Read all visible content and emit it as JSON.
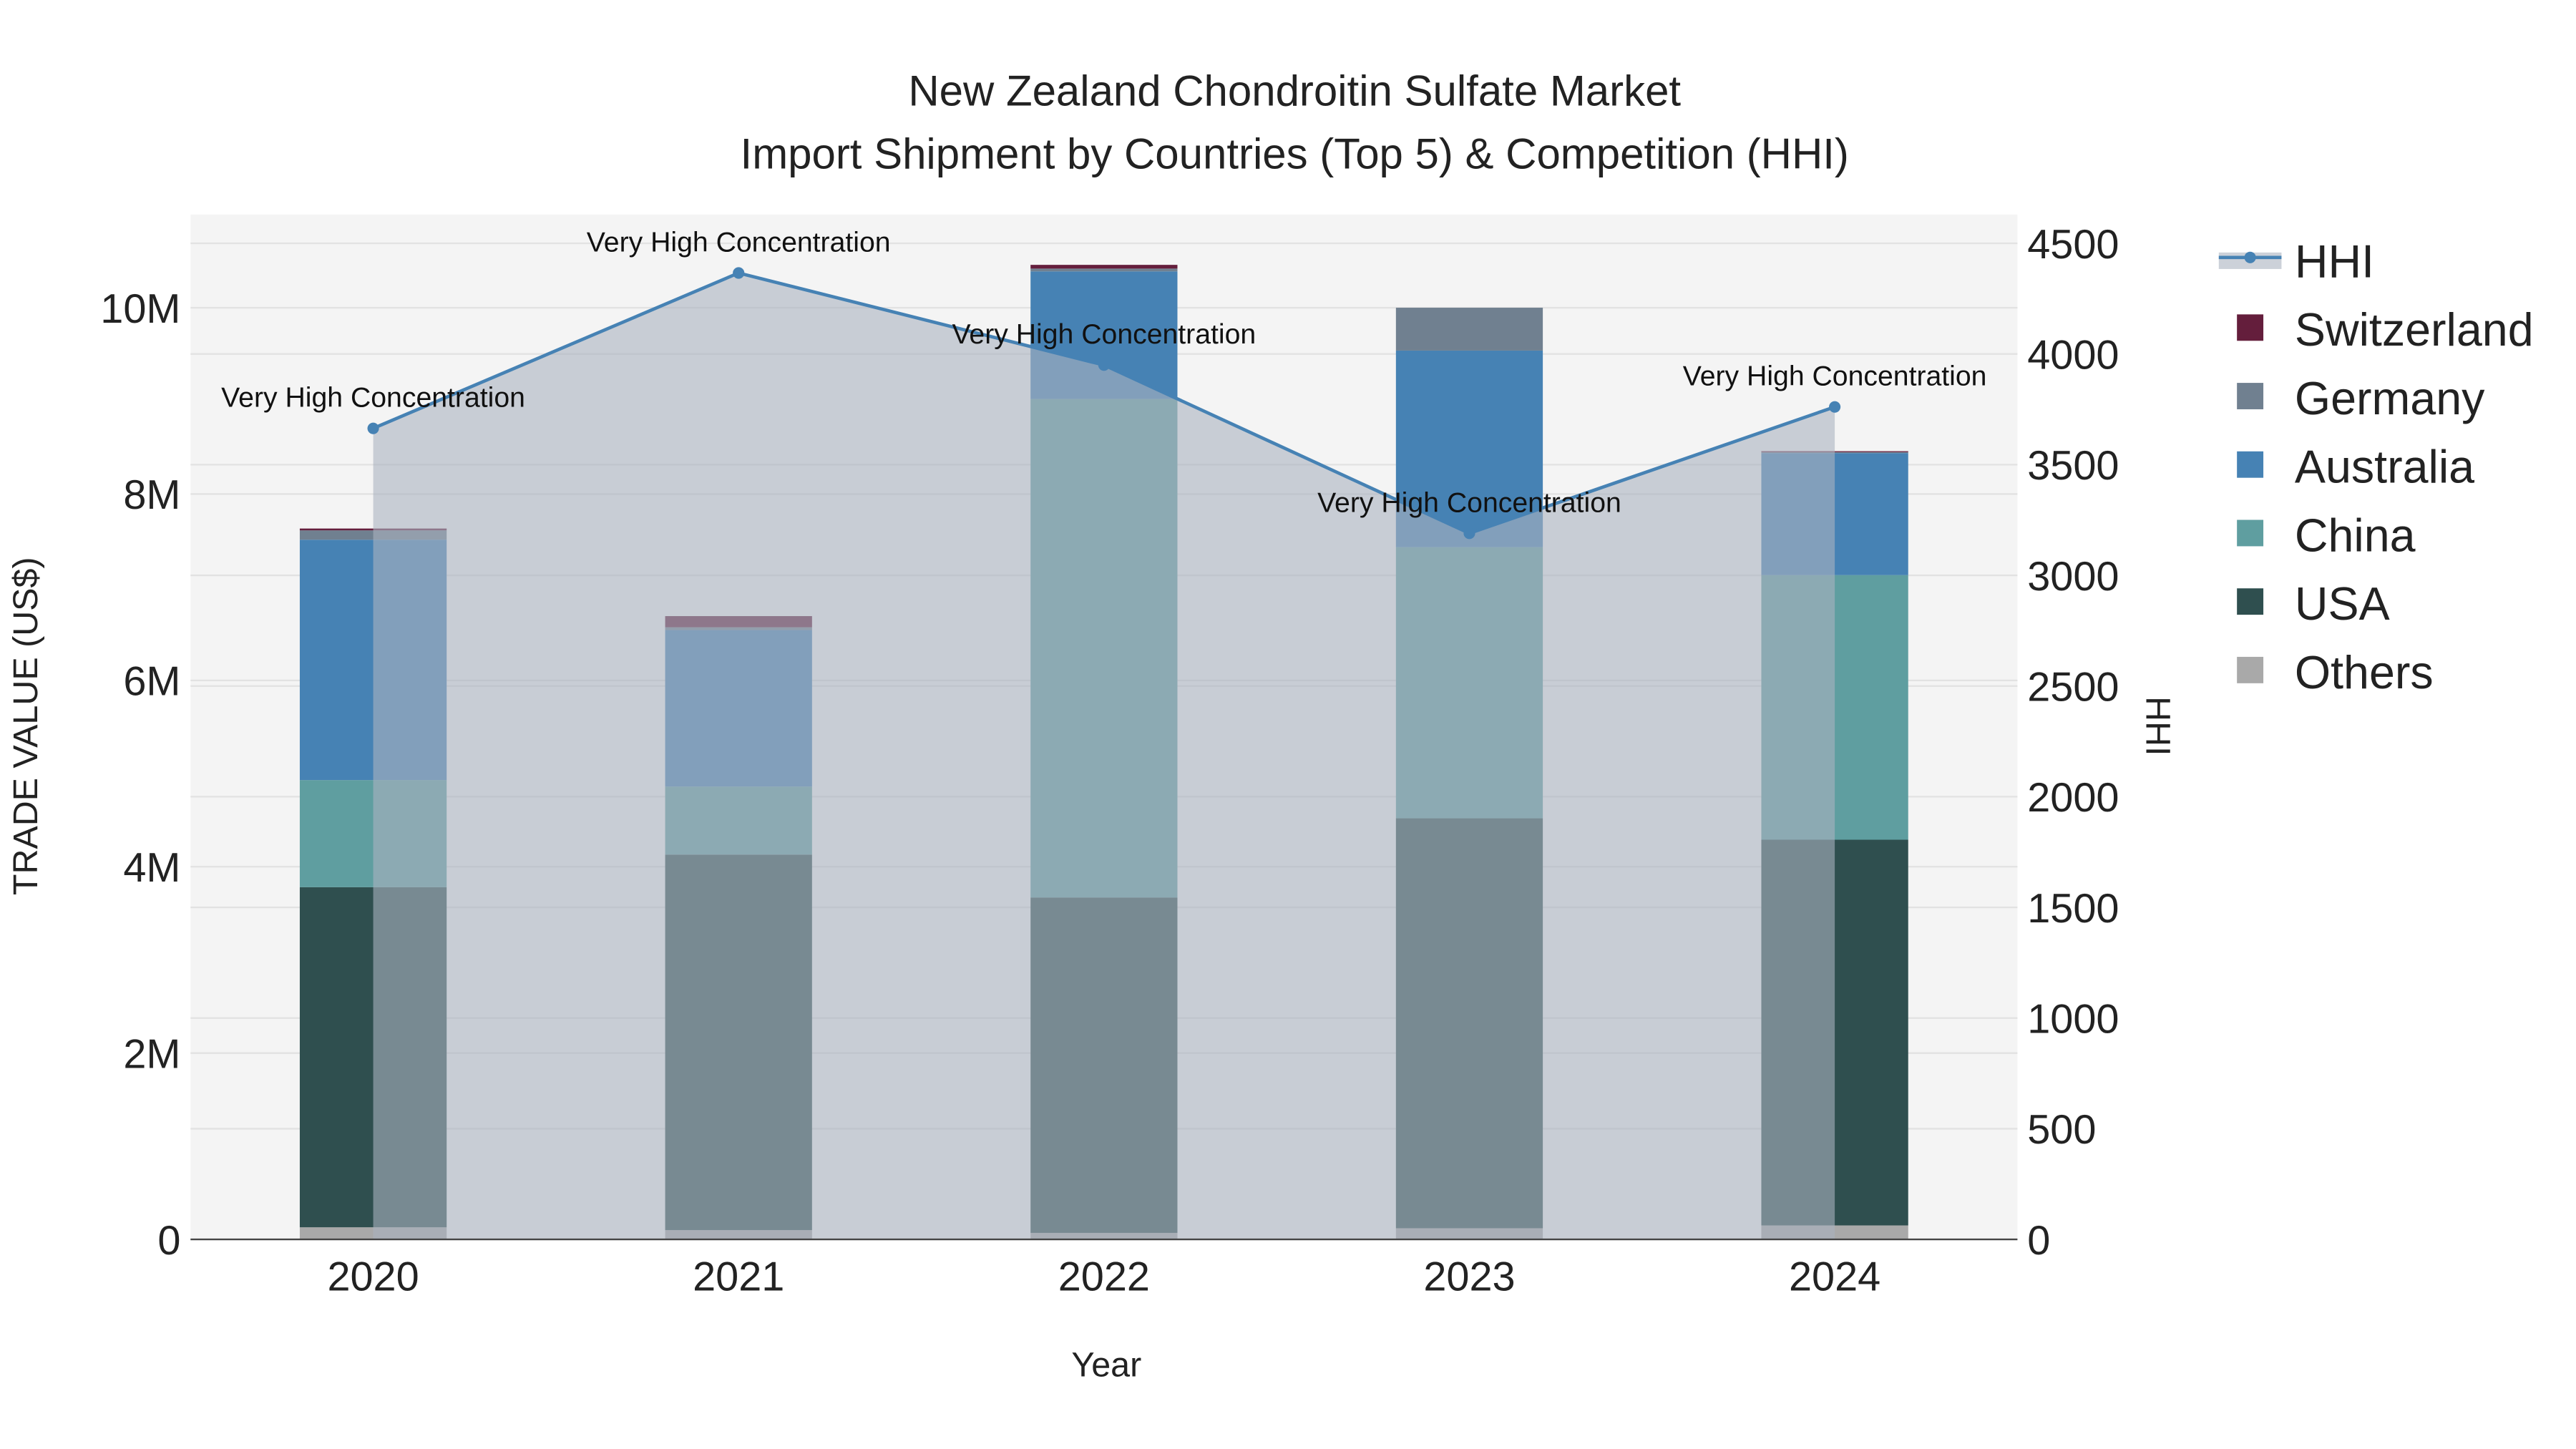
{
  "chart_data": {
    "type": "bar",
    "title": "New Zealand Chondroitin Sulfate Market",
    "subtitle": "Import Shipment by Countries (Top 5) & Competition (HHI)",
    "xlabel": "Year",
    "ylabel": "TRADE VALUE (US$)",
    "y2label": "HHI",
    "categories": [
      "2020",
      "2021",
      "2022",
      "2023",
      "2024"
    ],
    "ylim": [
      0,
      11000000
    ],
    "y2lim": [
      0,
      4630
    ],
    "yticks": [
      {
        "v": 0,
        "label": "0"
      },
      {
        "v": 2000000,
        "label": "2M"
      },
      {
        "v": 4000000,
        "label": "4M"
      },
      {
        "v": 6000000,
        "label": "6M"
      },
      {
        "v": 8000000,
        "label": "8M"
      },
      {
        "v": 10000000,
        "label": "10M"
      }
    ],
    "y2ticks": [
      {
        "v": 0,
        "label": "0"
      },
      {
        "v": 500,
        "label": "500"
      },
      {
        "v": 1000,
        "label": "1000"
      },
      {
        "v": 1500,
        "label": "1500"
      },
      {
        "v": 2000,
        "label": "2000"
      },
      {
        "v": 2500,
        "label": "2500"
      },
      {
        "v": 3000,
        "label": "3000"
      },
      {
        "v": 3500,
        "label": "3500"
      },
      {
        "v": 4000,
        "label": "4000"
      },
      {
        "v": 4500,
        "label": "4500"
      }
    ],
    "grid": true,
    "legend_position": "right",
    "series": [
      {
        "name": "Others",
        "color": "#a9a9a9",
        "values": [
          130000,
          100000,
          70000,
          120000,
          150000
        ]
      },
      {
        "name": "USA",
        "color": "#2f4f4f",
        "values": [
          3650000,
          4030000,
          3600000,
          4400000,
          4140000
        ]
      },
      {
        "name": "China",
        "color": "#5f9ea0",
        "values": [
          1150000,
          730000,
          5350000,
          2910000,
          2840000
        ]
      },
      {
        "name": "Australia",
        "color": "#4682b4",
        "values": [
          2580000,
          1680000,
          1370000,
          2110000,
          1310000
        ]
      },
      {
        "name": "Germany",
        "color": "#708090",
        "values": [
          100000,
          30000,
          30000,
          460000,
          10000
        ]
      },
      {
        "name": "Switzerland",
        "color": "#641e3c",
        "values": [
          20000,
          120000,
          40000,
          0,
          10000
        ]
      }
    ],
    "hhi": {
      "name": "HHI",
      "color": "#4682b4",
      "values": [
        3664,
        4366,
        3950,
        3190,
        3761
      ],
      "annotations": [
        "Very High Concentration",
        "Very High Concentration",
        "Very High Concentration",
        "Very High Concentration",
        "Very High Concentration"
      ]
    },
    "legend_order": [
      "HHI",
      "Switzerland",
      "Germany",
      "Australia",
      "China",
      "USA",
      "Others"
    ]
  }
}
